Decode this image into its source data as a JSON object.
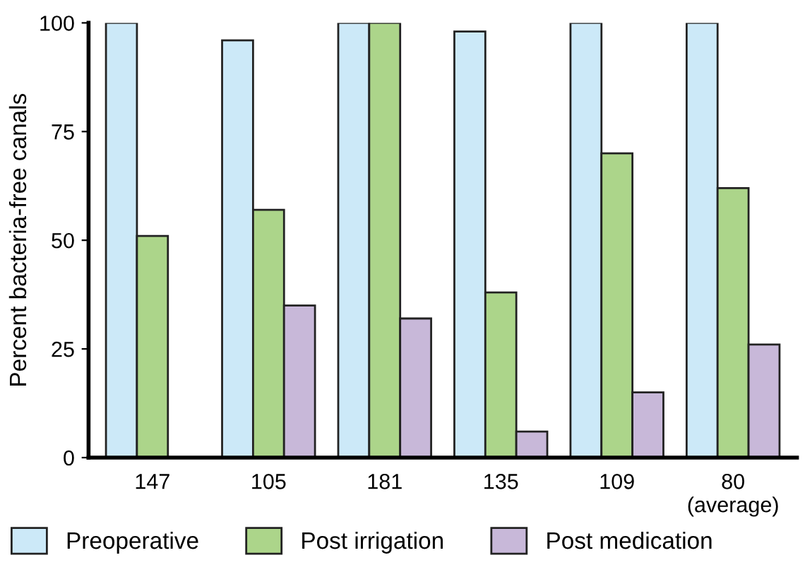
{
  "chart_data": {
    "type": "bar",
    "ylabel": "Percent bacteria-free canals",
    "categories": [
      "147",
      "105",
      "181",
      "135",
      "109",
      "80\n(average)"
    ],
    "series": [
      {
        "name": "Preoperative",
        "color": "#cce9f8",
        "values": [
          100,
          96,
          100,
          98,
          100,
          100
        ]
      },
      {
        "name": "Post irrigation",
        "color": "#acd58a",
        "values": [
          51,
          57,
          100,
          38,
          70,
          62
        ]
      },
      {
        "name": "Post medication",
        "color": "#c8b8d9",
        "values": [
          null,
          35,
          32,
          6,
          15,
          26
        ]
      }
    ],
    "ylim": [
      0,
      100
    ],
    "yticks": [
      0,
      25,
      50,
      75,
      100
    ],
    "grid": false,
    "legend": "bottom"
  }
}
